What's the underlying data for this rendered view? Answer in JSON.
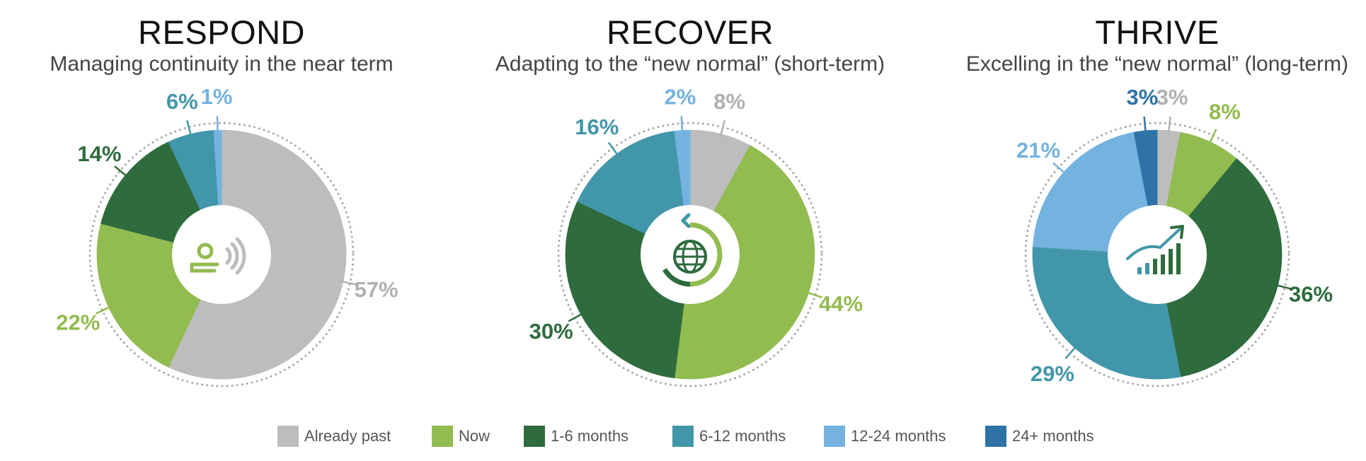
{
  "colors": {
    "Already past": "#bcbdbc",
    "Now": "#92bb50",
    "1-6 months": "#2e6b3d",
    "6-12 months": "#4296a9",
    "12-24 months": "#74b3e0",
    "24+ months": "#2f73a6"
  },
  "legend": {
    "items": [
      {
        "label": "Already past",
        "icon": "square-swatch"
      },
      {
        "label": "Now",
        "icon": "square-swatch"
      },
      {
        "label": "1-6 months",
        "icon": "square-swatch"
      },
      {
        "label": "6-12 months",
        "icon": "square-swatch"
      },
      {
        "label": "12-24 months",
        "icon": "square-swatch"
      },
      {
        "label": "24+ months",
        "icon": "square-swatch"
      }
    ]
  },
  "chart_data": [
    {
      "type": "pie",
      "title": "RESPOND",
      "subtitle": "Managing continuity in the near term",
      "center_icon": "person-broadcast-icon",
      "categories": [
        "Already past",
        "Now",
        "1-6 months",
        "6-12 months",
        "12-24 months"
      ],
      "values": [
        57,
        22,
        14,
        6,
        1
      ],
      "labels": [
        "57%",
        "22%",
        "14%",
        "6%",
        "1%"
      ]
    },
    {
      "type": "pie",
      "title": "RECOVER",
      "subtitle": "Adapting to the “new normal” (short-term)",
      "center_icon": "globe-refresh-icon",
      "categories": [
        "Already past",
        "Now",
        "1-6 months",
        "6-12 months",
        "12-24 months"
      ],
      "values": [
        8,
        44,
        30,
        16,
        2
      ],
      "labels": [
        "8%",
        "44%",
        "30%",
        "16%",
        "2%"
      ]
    },
    {
      "type": "pie",
      "title": "THRIVE",
      "subtitle": "Excelling in the “new normal” (long-term)",
      "center_icon": "growth-chart-icon",
      "categories": [
        "Already past",
        "Now",
        "1-6 months",
        "6-12 months",
        "12-24 months",
        "24+ months"
      ],
      "values": [
        3,
        8,
        36,
        29,
        21,
        3
      ],
      "labels": [
        "3%",
        "8%",
        "36%",
        "29%",
        "21%",
        "3%"
      ]
    }
  ]
}
